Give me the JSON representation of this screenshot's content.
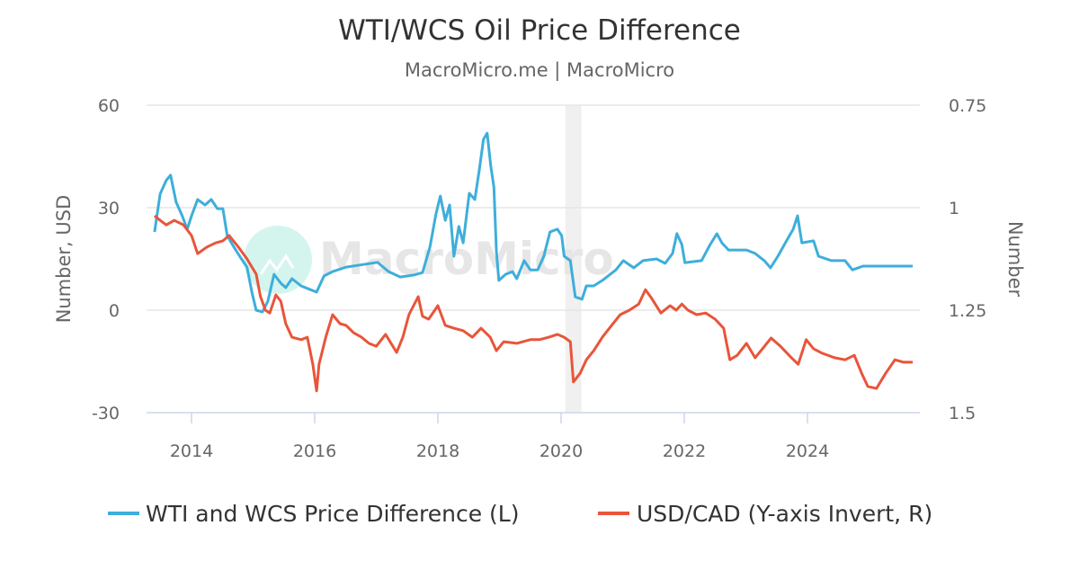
{
  "chart_data": {
    "type": "line",
    "title": "WTI/WCS Oil Price Difference",
    "subtitle": "MacroMicro.me | MacroMicro",
    "watermark": "MacroMicro",
    "grid": true,
    "legend_position": "bottom",
    "x_axis": {
      "type": "date",
      "range": [
        2013.3,
        2025.8
      ],
      "ticks": [
        "2014",
        "2016",
        "2018",
        "2020",
        "2022",
        "2024"
      ]
    },
    "y_left": {
      "label": "Number, USD",
      "range": [
        -30,
        60
      ],
      "ticks": [
        "60",
        "30",
        "0",
        "-30"
      ],
      "tick_values": [
        60,
        30,
        0,
        -30
      ]
    },
    "y_right": {
      "label": "Number",
      "inverted": true,
      "range": [
        0.75,
        1.5
      ],
      "ticks": [
        "0.75",
        "1",
        "1.25",
        "1.5"
      ],
      "tick_values": [
        0.75,
        1,
        1.25,
        1.5
      ]
    },
    "shaded_periods": [
      {
        "start": 2020.07,
        "end": 2020.33,
        "color": "#f0f0f0"
      }
    ],
    "series": [
      {
        "name": "WTI and WCS Price Difference (L)",
        "axis": "left",
        "color": "#3eaedb",
        "x": [
          2013.4,
          2013.49,
          2013.59,
          2013.66,
          2013.75,
          2013.85,
          2013.93,
          2014.0,
          2014.1,
          2014.22,
          2014.32,
          2014.42,
          2014.51,
          2014.58,
          2014.69,
          2014.8,
          2014.9,
          2014.98,
          2015.05,
          2015.15,
          2015.24,
          2015.34,
          2015.45,
          2015.53,
          2015.63,
          2015.78,
          2015.93,
          2016.03,
          2016.15,
          2016.29,
          2016.51,
          2016.73,
          2017.02,
          2017.2,
          2017.39,
          2017.61,
          2017.75,
          2017.87,
          2017.97,
          2018.04,
          2018.12,
          2018.19,
          2018.26,
          2018.34,
          2018.41,
          2018.51,
          2018.6,
          2018.67,
          2018.74,
          2018.8,
          2018.86,
          2018.91,
          2018.95,
          2018.99,
          2019.1,
          2019.21,
          2019.28,
          2019.4,
          2019.5,
          2019.62,
          2019.72,
          2019.82,
          2019.94,
          2020.01,
          2020.05,
          2020.15,
          2020.23,
          2020.34,
          2020.41,
          2020.53,
          2020.67,
          2020.89,
          2021.01,
          2021.18,
          2021.33,
          2021.55,
          2021.69,
          2021.81,
          2021.88,
          2021.96,
          2022.01,
          2022.28,
          2022.42,
          2022.53,
          2022.61,
          2022.72,
          2023.01,
          2023.15,
          2023.3,
          2023.4,
          2023.52,
          2023.66,
          2023.77,
          2023.84,
          2023.91,
          2024.1,
          2024.18,
          2024.39,
          2024.61,
          2024.73,
          2024.9,
          2025.19,
          2025.49,
          2025.71
        ],
        "y": [
          22.9,
          34,
          38,
          39.5,
          31.6,
          27.6,
          23.7,
          27.6,
          32.4,
          30.8,
          32.4,
          29.7,
          29.7,
          21.8,
          18.4,
          15.3,
          12.6,
          5.3,
          0,
          -0.5,
          2.6,
          10.5,
          7.9,
          6.6,
          9.2,
          7.1,
          6,
          5.3,
          10,
          11.3,
          12.6,
          13.2,
          14,
          11.3,
          9.7,
          10.3,
          11,
          18.4,
          28.2,
          33.4,
          26.3,
          30.8,
          15.8,
          24.5,
          19.7,
          34.2,
          32.4,
          40.8,
          50,
          51.8,
          42,
          36,
          17.1,
          8.7,
          10.5,
          11.3,
          9.2,
          14.5,
          11.8,
          11.8,
          15.8,
          22.9,
          23.7,
          21.8,
          15.8,
          14.5,
          3.9,
          3.2,
          7.1,
          7.1,
          8.7,
          11.8,
          14.5,
          12.4,
          14.5,
          15,
          13.7,
          16.6,
          22.4,
          19.2,
          13.9,
          14.5,
          19.2,
          22.4,
          19.7,
          17.6,
          17.6,
          16.6,
          14.5,
          12.4,
          15.8,
          20.3,
          23.7,
          27.6,
          19.7,
          20.3,
          15.8,
          14.5,
          14.5,
          11.8,
          12.9,
          12.9,
          12.9,
          12.9
        ]
      },
      {
        "name": "USD/CAD (Y-axis Invert, R)",
        "axis": "right",
        "color": "#e8553a",
        "x": [
          2013.4,
          2013.49,
          2013.59,
          2013.72,
          2013.87,
          2014.0,
          2014.1,
          2014.25,
          2014.39,
          2014.51,
          2014.61,
          2014.76,
          2014.9,
          2015.05,
          2015.12,
          2015.2,
          2015.27,
          2015.37,
          2015.45,
          2015.53,
          2015.63,
          2015.78,
          2015.88,
          2015.97,
          2016.03,
          2016.07,
          2016.18,
          2016.29,
          2016.41,
          2016.51,
          2016.63,
          2016.76,
          2016.88,
          2017.0,
          2017.15,
          2017.33,
          2017.43,
          2017.53,
          2017.68,
          2017.75,
          2017.85,
          2018.0,
          2018.12,
          2018.26,
          2018.41,
          2018.56,
          2018.7,
          2018.85,
          2018.95,
          2019.07,
          2019.28,
          2019.5,
          2019.65,
          2019.8,
          2019.94,
          2020.05,
          2020.15,
          2020.2,
          2020.31,
          2020.41,
          2020.53,
          2020.67,
          2020.82,
          2020.96,
          2021.11,
          2021.26,
          2021.37,
          2021.47,
          2021.62,
          2021.77,
          2021.87,
          2021.96,
          2022.06,
          2022.2,
          2022.35,
          2022.5,
          2022.64,
          2022.74,
          2022.86,
          2023.01,
          2023.15,
          2023.27,
          2023.41,
          2023.56,
          2023.74,
          2023.85,
          2023.98,
          2024.1,
          2024.24,
          2024.44,
          2024.61,
          2024.76,
          2024.88,
          2024.98,
          2025.12,
          2025.27,
          2025.42,
          2025.56,
          2025.71
        ],
        "y": [
          1.02,
          1.031,
          1.042,
          1.031,
          1.042,
          1.068,
          1.112,
          1.096,
          1.086,
          1.081,
          1.068,
          1.096,
          1.125,
          1.162,
          1.217,
          1.25,
          1.257,
          1.213,
          1.228,
          1.283,
          1.316,
          1.322,
          1.316,
          1.382,
          1.447,
          1.382,
          1.316,
          1.261,
          1.283,
          1.287,
          1.305,
          1.316,
          1.331,
          1.338,
          1.309,
          1.353,
          1.316,
          1.261,
          1.217,
          1.265,
          1.272,
          1.239,
          1.287,
          1.294,
          1.3,
          1.316,
          1.294,
          1.316,
          1.349,
          1.327,
          1.331,
          1.322,
          1.322,
          1.316,
          1.309,
          1.316,
          1.327,
          1.425,
          1.404,
          1.371,
          1.349,
          1.316,
          1.287,
          1.261,
          1.25,
          1.235,
          1.2,
          1.221,
          1.257,
          1.239,
          1.25,
          1.235,
          1.25,
          1.261,
          1.257,
          1.272,
          1.294,
          1.371,
          1.36,
          1.331,
          1.366,
          1.344,
          1.318,
          1.338,
          1.366,
          1.382,
          1.322,
          1.344,
          1.355,
          1.366,
          1.371,
          1.36,
          1.404,
          1.436,
          1.441,
          1.404,
          1.371,
          1.377,
          1.377
        ]
      }
    ]
  }
}
